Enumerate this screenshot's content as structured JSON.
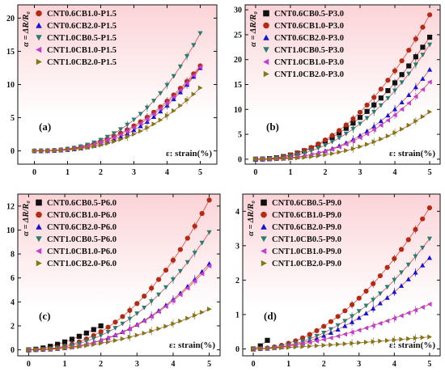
{
  "colors": {
    "CNT0.6CB0.5": "#111111",
    "CNT0.6CB1.0": "#b52a12",
    "CNT0.6CB2.0": "#1414d6",
    "CNT1.0CB0.5": "#2a7c70",
    "CNT1.0CB1.0": "#c23ccf",
    "CNT1.0CB2.0": "#7e7a12",
    "panel_bg_top": "#fbd3d7",
    "panel_bg_bottom": "#ffffff",
    "fit_line": "#cc2222"
  },
  "marker_shapes": {
    "CNT0.6CB0.5": "square",
    "CNT0.6CB1.0": "circle",
    "CNT0.6CB2.0": "triangle-up",
    "CNT1.0CB0.5": "triangle-down",
    "CNT1.0CB1.0": "triangle-left",
    "CNT1.0CB2.0": "triangle-right"
  },
  "chart_data": [
    {
      "type": "scatter",
      "panel_label": "(a)",
      "ylabel": "α = ΔR/R₀",
      "xlabel": "ε: strain(%)",
      "xlim": [
        -0.5,
        5.5
      ],
      "ylim": [
        -2,
        22
      ],
      "xticks": [
        0,
        1,
        2,
        3,
        4,
        5
      ],
      "yticks": [
        0,
        5,
        10,
        15,
        20
      ],
      "legend_position": "top-left",
      "series": [
        {
          "name": "CNT0.6CB1.0-P1.5",
          "key": "CNT0.6CB1.0",
          "final": 12.8,
          "p": 2.4
        },
        {
          "name": "CNT0.6CB2.0-P1.5",
          "key": "CNT0.6CB2.0",
          "final": 12.5,
          "p": 2.7
        },
        {
          "name": "CNT1.0CB0.5-P1.5",
          "key": "CNT1.0CB0.5",
          "final": 17.7,
          "p": 2.6
        },
        {
          "name": "CNT1.0CB1.0-P1.5",
          "key": "CNT1.0CB1.0",
          "final": 12.6,
          "p": 2.5
        },
        {
          "name": "CNT1.0CB2.0-P1.5",
          "key": "CNT1.0CB2.0",
          "final": 9.5,
          "p": 2.6
        }
      ]
    },
    {
      "type": "scatter",
      "panel_label": "(b)",
      "ylabel": "α = ΔR/R₀",
      "xlabel": "ε: strain(%)",
      "xlim": [
        -0.3,
        5.3
      ],
      "ylim": [
        -1,
        31
      ],
      "xticks": [
        0,
        1,
        2,
        3,
        4,
        5
      ],
      "yticks": [
        0,
        5,
        10,
        15,
        20,
        25,
        30
      ],
      "legend_position": "top-left",
      "series": [
        {
          "name": "CNT0.6CB0.5-P3.0",
          "key": "CNT0.6CB0.5",
          "final": 24.5,
          "p": 2.1
        },
        {
          "name": "CNT0.6CB1.0-P3.0",
          "key": "CNT0.6CB1.0",
          "final": 29.0,
          "p": 2.2
        },
        {
          "name": "CNT0.6CB2.0-P3.0",
          "key": "CNT0.6CB2.0",
          "final": 18.0,
          "p": 2.6
        },
        {
          "name": "CNT1.0CB0.5-P3.0",
          "key": "CNT1.0CB0.5",
          "final": 23.0,
          "p": 2.3
        },
        {
          "name": "CNT1.0CB1.0-P3.0",
          "key": "CNT1.0CB1.0",
          "final": 15.5,
          "p": 2.5
        },
        {
          "name": "CNT1.0CB2.0-P3.0",
          "key": "CNT1.0CB2.0",
          "final": 9.5,
          "p": 2.6
        }
      ]
    },
    {
      "type": "scatter",
      "panel_label": "(c)",
      "ylabel": "α = ΔR/R₀",
      "xlabel": "ε: strain(%)",
      "xlim": [
        -0.3,
        5.3
      ],
      "ylim": [
        -0.5,
        13
      ],
      "xticks": [
        0,
        1,
        2,
        3,
        4,
        5
      ],
      "yticks": [
        0,
        2,
        4,
        6,
        8,
        10,
        12
      ],
      "legend_position": "top-left",
      "series": [
        {
          "name": "CNT0.6CB0.5-P6.0",
          "key": "CNT0.6CB0.5",
          "final": 2.0,
          "p": 1.6,
          "xmax": 2.0
        },
        {
          "name": "CNT0.6CB1.0-P6.0",
          "key": "CNT0.6CB1.0",
          "final": 12.5,
          "p": 2.3
        },
        {
          "name": "CNT0.6CB2.0-P6.0",
          "key": "CNT0.6CB2.0",
          "final": 7.2,
          "p": 2.4
        },
        {
          "name": "CNT1.0CB0.5-P6.0",
          "key": "CNT1.0CB0.5",
          "final": 9.8,
          "p": 2.3
        },
        {
          "name": "CNT1.0CB1.0-P6.0",
          "key": "CNT1.0CB1.0",
          "final": 7.0,
          "p": 2.4
        },
        {
          "name": "CNT1.0CB2.0-P6.0",
          "key": "CNT1.0CB2.0",
          "final": 3.4,
          "p": 2.0
        }
      ]
    },
    {
      "type": "scatter",
      "panel_label": "(d)",
      "ylabel": "α = ΔR/R₀",
      "xlabel": "ε: strain(%)",
      "xlim": [
        -0.3,
        5.3
      ],
      "ylim": [
        -0.2,
        4.5
      ],
      "xticks": [
        0,
        1,
        2,
        3,
        4,
        5
      ],
      "yticks": [
        0,
        1,
        2,
        3,
        4
      ],
      "legend_position": "top-left",
      "series": [
        {
          "name": "CNT0.6CB0.5-P9.0",
          "key": "CNT0.6CB0.5",
          "final": 0.35,
          "p": 1.5,
          "xmax": 0.5
        },
        {
          "name": "CNT0.6CB1.0-P9.0",
          "key": "CNT0.6CB1.0",
          "final": 4.1,
          "p": 2.0
        },
        {
          "name": "CNT0.6CB2.0-P9.0",
          "key": "CNT0.6CB2.0",
          "final": 2.65,
          "p": 2.1
        },
        {
          "name": "CNT1.0CB0.5-P9.0",
          "key": "CNT1.0CB0.5",
          "final": 3.2,
          "p": 2.1
        },
        {
          "name": "CNT1.0CB1.0-P9.0",
          "key": "CNT1.0CB1.0",
          "final": 1.3,
          "p": 1.7
        },
        {
          "name": "CNT1.0CB2.0-P9.0",
          "key": "CNT1.0CB2.0",
          "final": 0.35,
          "p": 1.3
        }
      ]
    }
  ]
}
